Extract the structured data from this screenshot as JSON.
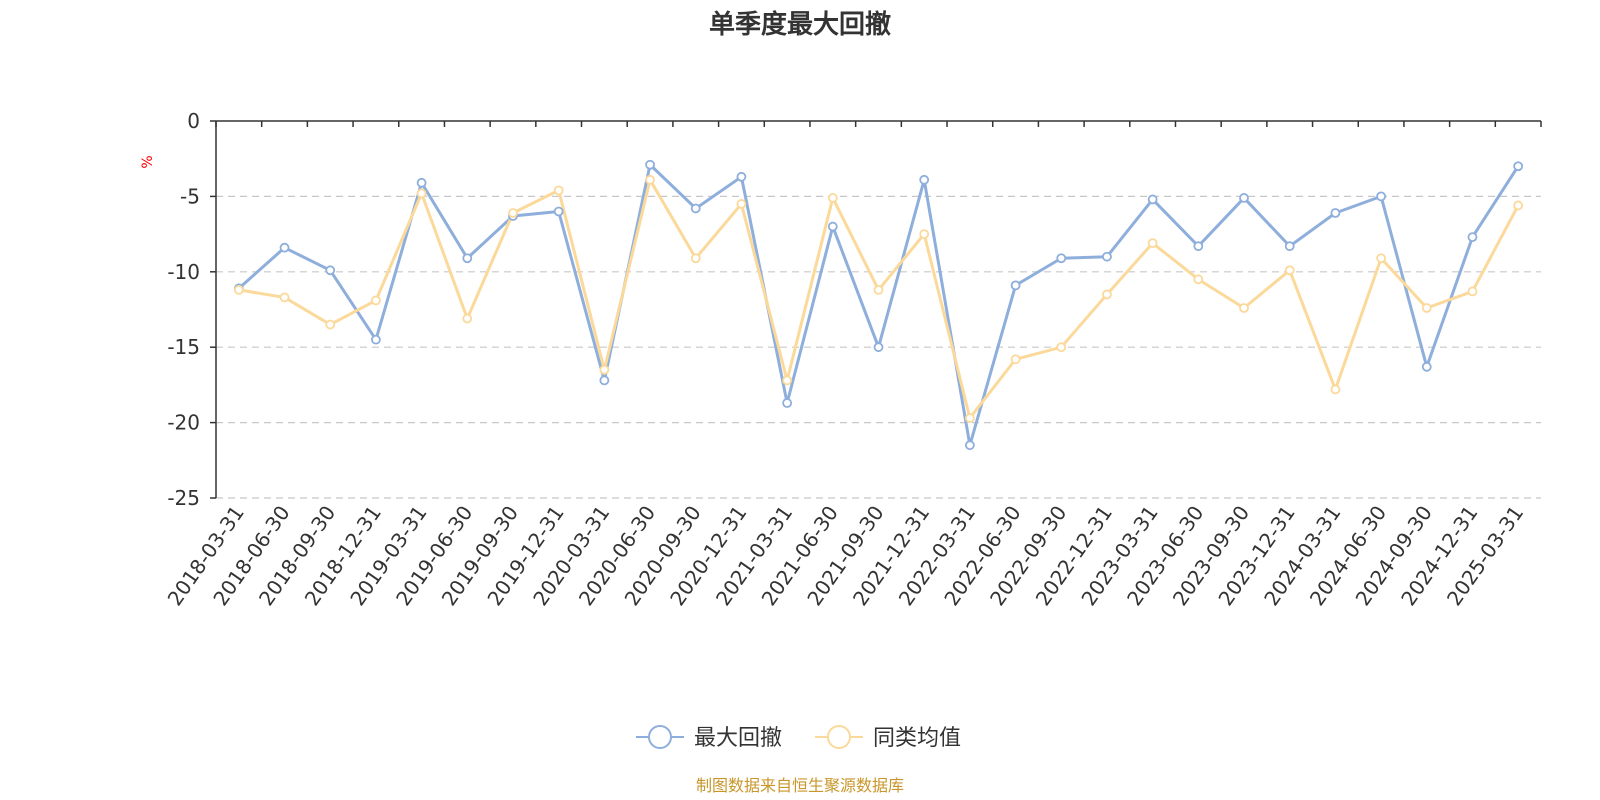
{
  "chart_data": {
    "type": "line",
    "title": "单季度最大回撤",
    "ylabel": "%",
    "xlabel": "",
    "ylim": [
      -25,
      0
    ],
    "yticks": [
      "0",
      "-5",
      "-10",
      "-15",
      "-20",
      "-25"
    ],
    "ytick_values": [
      0,
      -5,
      -10,
      -15,
      -20,
      -25
    ],
    "grid": true,
    "legend_position": "bottom-center",
    "categories": [
      "2018-03-31",
      "2018-06-30",
      "2018-09-30",
      "2018-12-31",
      "2019-03-31",
      "2019-06-30",
      "2019-09-30",
      "2019-12-31",
      "2020-03-31",
      "2020-06-30",
      "2020-09-30",
      "2020-12-31",
      "2021-03-31",
      "2021-06-30",
      "2021-09-30",
      "2021-12-31",
      "2022-03-31",
      "2022-06-30",
      "2022-09-30",
      "2022-12-31",
      "2023-03-31",
      "2023-06-30",
      "2023-09-30",
      "2023-12-31",
      "2024-03-31",
      "2024-06-30",
      "2024-09-30",
      "2024-12-31",
      "2025-03-31"
    ],
    "series": [
      {
        "name": "最大回撤",
        "color": "#8eaedc",
        "values": [
          -11.1,
          -8.4,
          -9.9,
          -14.5,
          -4.1,
          -9.1,
          -6.3,
          -6.0,
          -17.2,
          -2.9,
          -5.8,
          -3.7,
          -18.7,
          -7.0,
          -15.0,
          -3.9,
          -21.5,
          -10.9,
          -9.1,
          -9.0,
          -5.2,
          -8.3,
          -5.1,
          -8.3,
          -6.1,
          -5.0,
          -16.3,
          -7.7,
          -3.0
        ]
      },
      {
        "name": "同类均值",
        "color": "#fbd99a",
        "values": [
          -11.2,
          -11.7,
          -13.5,
          -11.9,
          -4.8,
          -13.1,
          -6.1,
          -4.6,
          -16.5,
          -3.9,
          -9.1,
          -5.5,
          -17.2,
          -5.1,
          -11.2,
          -7.5,
          -19.7,
          -15.8,
          -15.0,
          -11.5,
          -8.1,
          -10.5,
          -12.4,
          -9.9,
          -17.8,
          -9.1,
          -12.4,
          -11.3,
          -5.6
        ]
      }
    ],
    "source": "制图数据来自恒生聚源数据库"
  }
}
